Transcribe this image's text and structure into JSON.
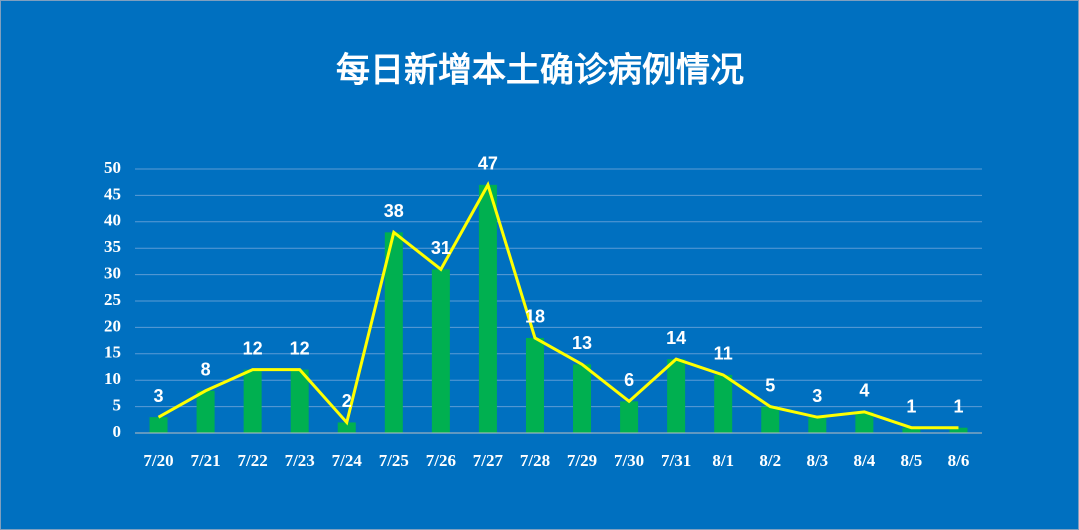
{
  "chart_data": {
    "type": "bar",
    "title": "每日新增本土确诊病例情况",
    "categories": [
      "7/20",
      "7/21",
      "7/22",
      "7/23",
      "7/24",
      "7/25",
      "7/26",
      "7/27",
      "7/28",
      "7/29",
      "7/30",
      "7/31",
      "8/1",
      "8/2",
      "8/3",
      "8/4",
      "8/5",
      "8/6"
    ],
    "values": [
      3,
      8,
      12,
      12,
      2,
      38,
      31,
      47,
      18,
      13,
      6,
      14,
      11,
      5,
      3,
      4,
      1,
      1
    ],
    "color": "#00b050",
    "line_color": "#ffff00",
    "ylim": [
      0,
      50
    ],
    "yticks": [
      0,
      5,
      10,
      15,
      20,
      25,
      30,
      35,
      40,
      45,
      50
    ],
    "grid": true
  }
}
